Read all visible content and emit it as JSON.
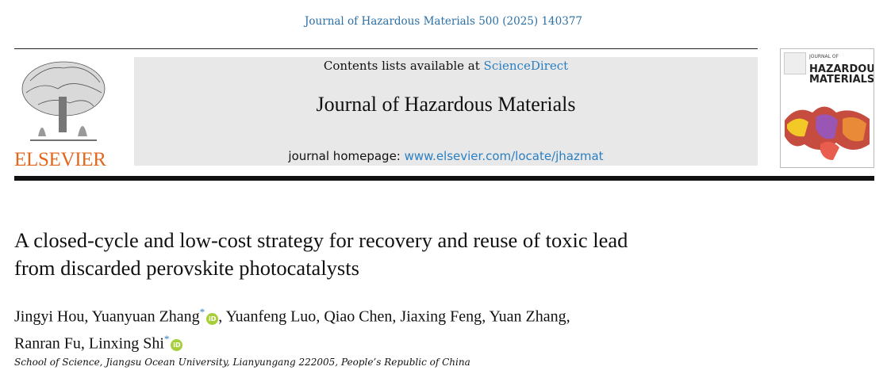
{
  "running_head": "Journal of Hazardous Materials 500 (2025) 140377",
  "publisher": "ELSEVIER",
  "banner": {
    "contents_prefix": "Contents lists available at ",
    "contents_link": "ScienceDirect",
    "journal_title": "Journal of Hazardous Materials",
    "homepage_prefix": "journal homepage: ",
    "homepage_link": "www.elsevier.com/locate/jhazmat"
  },
  "cover": {
    "line1": "HAZARDOUS",
    "line2": "MATERIALS",
    "small": "JOURNAL OF"
  },
  "article": {
    "title_line1": "A closed-cycle and low-cost strategy for recovery and reuse of toxic lead",
    "title_line2": "from discarded perovskite photocatalysts",
    "authors": [
      "Jingyi Hou",
      "Yuanyuan Zhang",
      "Yuanfeng Luo",
      "Qiao Chen",
      "Jiaxing Feng",
      "Yuan Zhang",
      "Ranran Fu",
      "Linxing Shi"
    ],
    "corresponding_mark": "*",
    "orcid_label": "iD",
    "affiliation": "School of Science, Jiangsu Ocean University, Lianyungang 222005, People’s Republic of China"
  },
  "colors": {
    "link": "#2a7fc2",
    "elsevier": "#e2661c",
    "orcid": "#a6ce39"
  }
}
